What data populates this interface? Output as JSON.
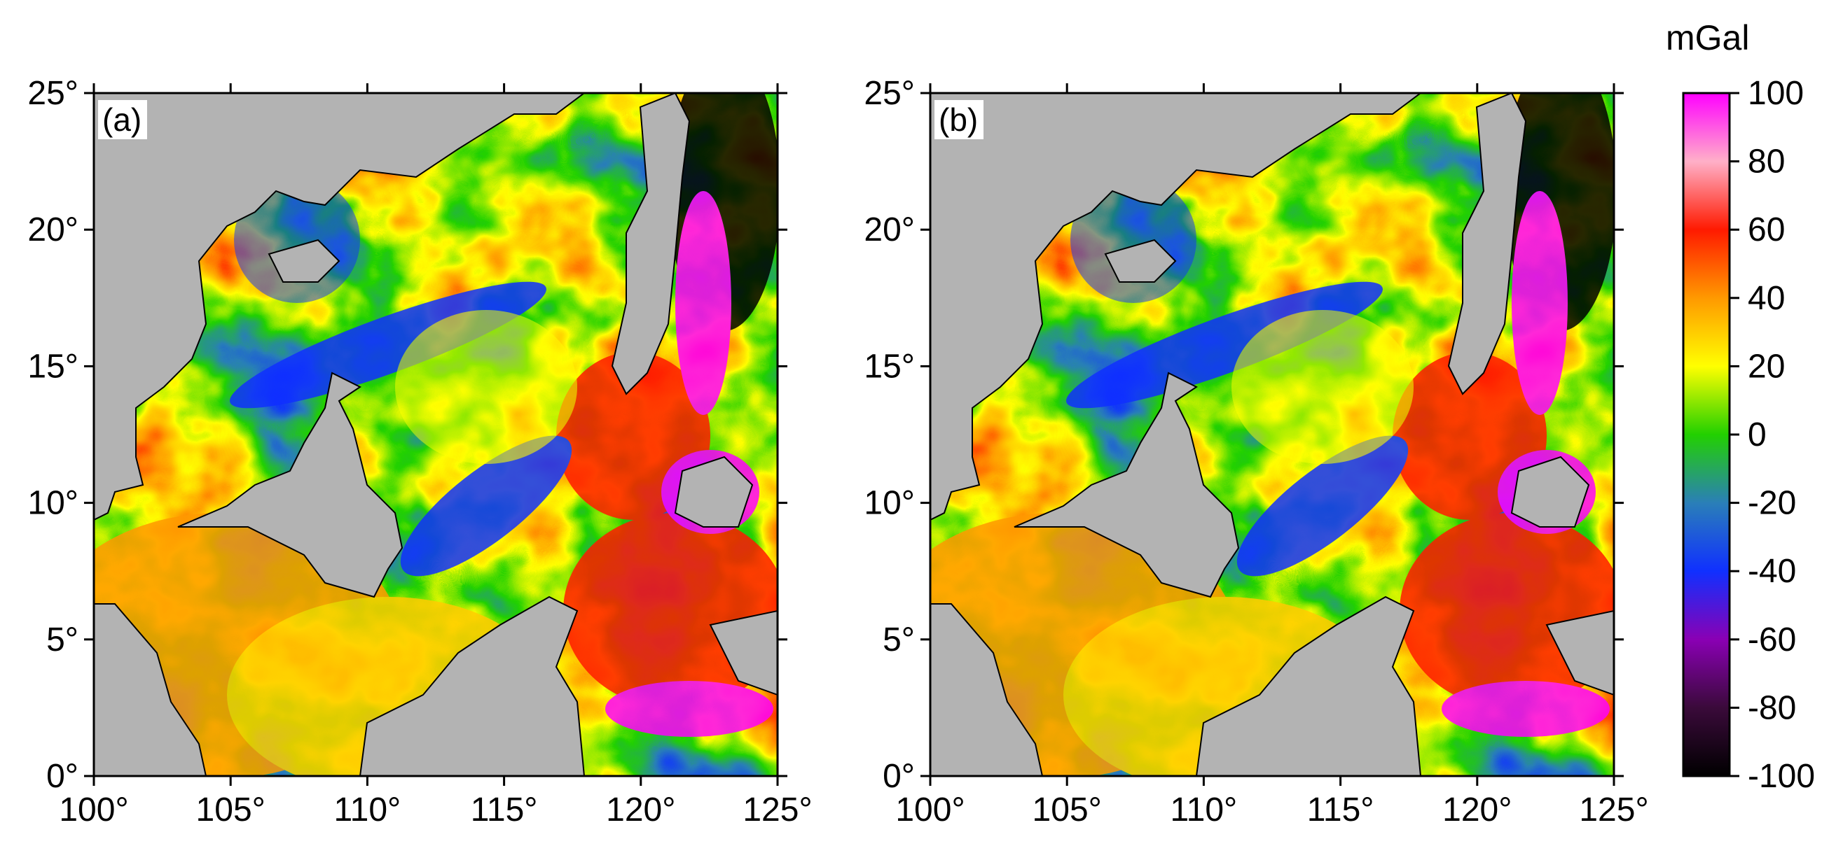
{
  "figure": {
    "unit": "mGal",
    "colormap": {
      "min": -100,
      "max": 100,
      "tick_labels": [
        "100",
        "80",
        "60",
        "40",
        "20",
        "0",
        "-20",
        "-40",
        "-60",
        "-80",
        "-100"
      ],
      "stops": [
        {
          "value": -100,
          "color": "#000000"
        },
        {
          "value": -80,
          "color": "#3a0a3a"
        },
        {
          "value": -60,
          "color": "#8a00b4"
        },
        {
          "value": -40,
          "color": "#1030ff"
        },
        {
          "value": -20,
          "color": "#2a7fb8"
        },
        {
          "value": 0,
          "color": "#22d000"
        },
        {
          "value": 20,
          "color": "#ffff00"
        },
        {
          "value": 40,
          "color": "#ff9900"
        },
        {
          "value": 60,
          "color": "#ff1a00"
        },
        {
          "value": 80,
          "color": "#ffb0c8"
        },
        {
          "value": 100,
          "color": "#ff00ff"
        }
      ]
    },
    "land_color": "#b3b3b3",
    "axes": {
      "lon_range": [
        100,
        125
      ],
      "lat_range": [
        0,
        25
      ],
      "lon_tick_labels": [
        "100°",
        "105°",
        "110°",
        "115°",
        "120°",
        "125°"
      ],
      "lat_tick_labels": [
        "0°",
        "5°",
        "10°",
        "15°",
        "20°",
        "25°"
      ]
    },
    "panels": [
      {
        "tag": "(a)"
      },
      {
        "tag": "(b)"
      }
    ]
  }
}
